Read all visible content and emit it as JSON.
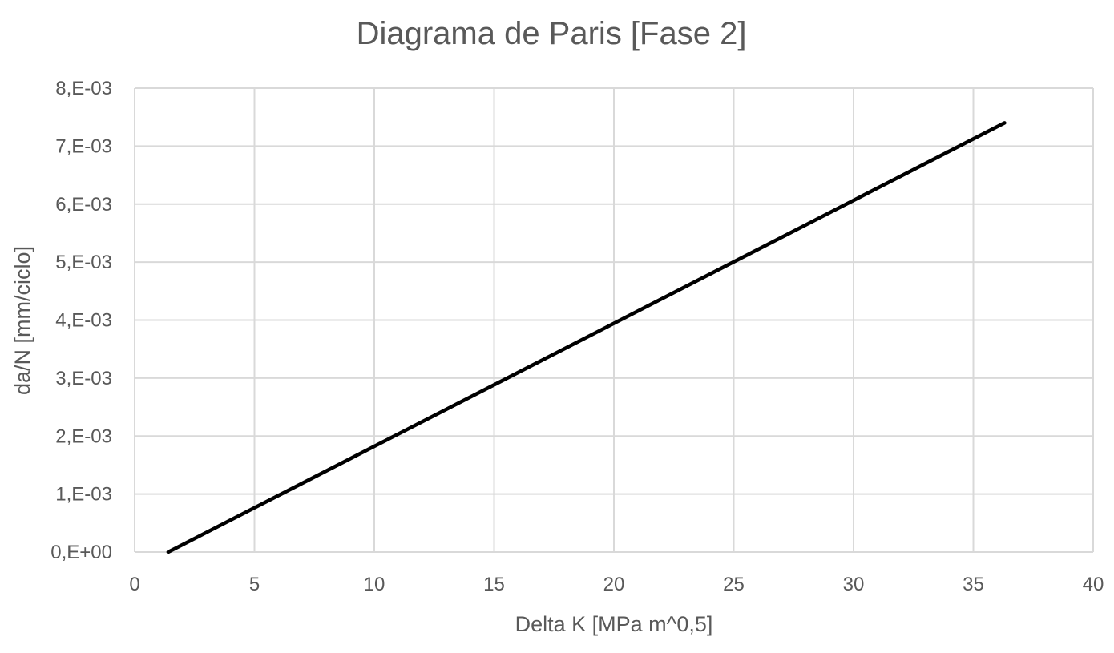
{
  "chart_data": {
    "type": "line",
    "title": "Diagrama de Paris [Fase 2]",
    "xlabel": "Delta K [MPa m^0,5]",
    "ylabel": "da/N [mm/ciclo]",
    "xlim": [
      0,
      40
    ],
    "ylim": [
      0,
      0.008
    ],
    "x_ticks": [
      0,
      5,
      10,
      15,
      20,
      25,
      30,
      35,
      40
    ],
    "x_tick_labels": [
      "0",
      "5",
      "10",
      "15",
      "20",
      "25",
      "30",
      "35",
      "40"
    ],
    "y_ticks": [
      0,
      0.001,
      0.002,
      0.003,
      0.004,
      0.005,
      0.006,
      0.007,
      0.008
    ],
    "y_tick_labels": [
      "0,E+00",
      "1,E-03",
      "2,E-03",
      "3,E-03",
      "4,E-03",
      "5,E-03",
      "6,E-03",
      "7,E-03",
      "8,E-03"
    ],
    "grid": true,
    "legend": "none",
    "series": [
      {
        "color": "#000000",
        "x": [
          1.4,
          36.3
        ],
        "y": [
          0.0,
          0.0074
        ]
      }
    ]
  }
}
